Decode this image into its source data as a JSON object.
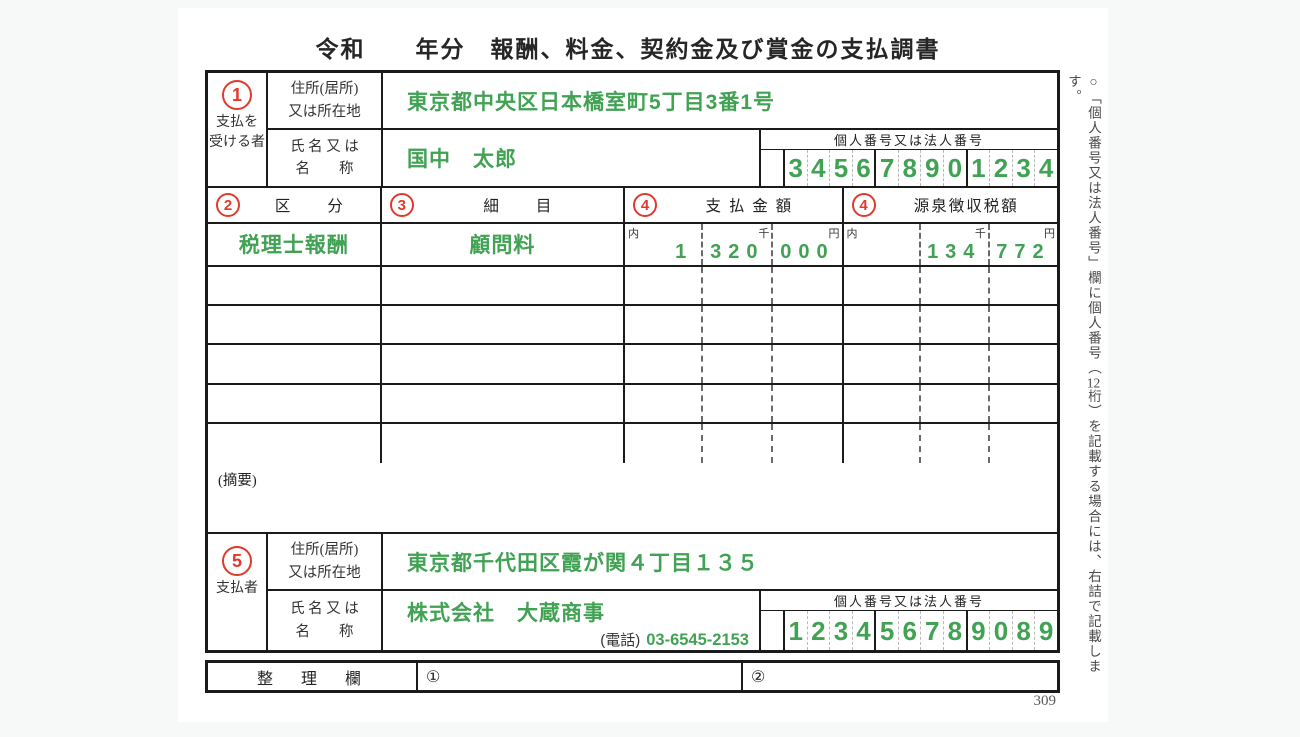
{
  "page": {
    "title": "令和　　年分　報酬、料金、契約金及び賞金の支払調書",
    "page_number": "309",
    "side_note_pre": "○「個人番号又は法人番号」欄に個人番号（",
    "side_note_tcy": "12",
    "side_note_post": "桁）を記載する場合には、右詰で記載します。",
    "colors": {
      "entry_green": "#41a254",
      "badge_red": "#e03a2c",
      "line_black": "#1b1b1b"
    }
  },
  "recipient": {
    "badge": "1",
    "role_label": "支払を\n受ける者",
    "address_label": "住所(居所)\n又は所在地",
    "address_value": "東京都中央区日本橋室町5丁目3番1号",
    "name_label": "氏 名 又 は\n名　　称",
    "name_value": "国中　太郎",
    "id_header": "個人番号又は法人番号",
    "id_digits": [
      "",
      "3",
      "4",
      "5",
      "6",
      "7",
      "8",
      "9",
      "0",
      "1",
      "2",
      "3",
      "4"
    ]
  },
  "detail_table": {
    "col1_badge": "2",
    "col1_label": "区　　分",
    "col2_badge": "3",
    "col2_label": "細　　目",
    "col3_badge": "4",
    "col3_label": "支 払 金 額",
    "col4_badge": "4",
    "col4_label": "源泉徴収税額",
    "markers": {
      "uchi": "内",
      "sen": "千",
      "yen": "円"
    },
    "row1": {
      "category": "税理士報酬",
      "item": "顧問料",
      "pay_m": "1",
      "pay_k": "320",
      "pay_u": "000",
      "tax_m": "",
      "tax_k": "134",
      "tax_u": "772"
    },
    "empty_row_count": 5
  },
  "summary": {
    "label": "(摘要)"
  },
  "payer": {
    "badge": "5",
    "role_label": "支払者",
    "address_label": "住所(居所)\n又は所在地",
    "address_value": "東京都千代田区霞が関４丁目１３５",
    "name_label": "氏 名 又 は\n名　　称",
    "name_value": "株式会社　大蔵商事",
    "phone_label": "(電話)",
    "phone_value": "03-6545-2153",
    "id_header": "個人番号又は法人番号",
    "id_digits": [
      "",
      "1",
      "2",
      "3",
      "4",
      "5",
      "6",
      "7",
      "8",
      "9",
      "0",
      "8",
      "9"
    ]
  },
  "seiri": {
    "label": "整　理　欄",
    "cell1_badge": "①",
    "cell2_badge": "②"
  }
}
